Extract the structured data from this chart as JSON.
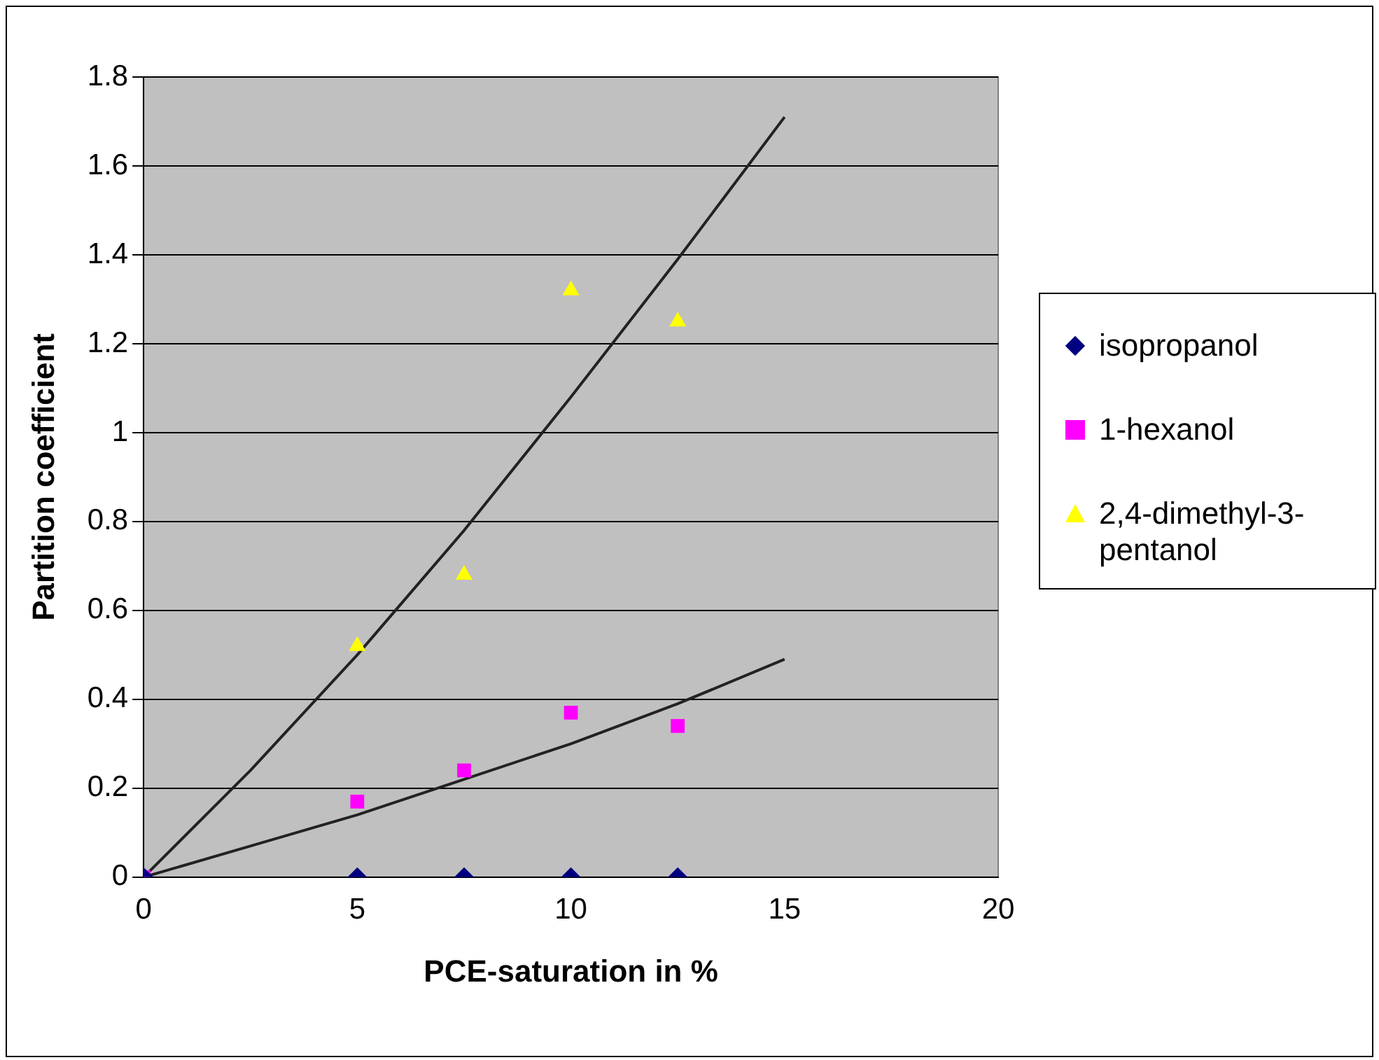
{
  "chart_data": {
    "type": "scatter",
    "xlabel": "PCE-saturation in %",
    "ylabel": "Partition coefficient",
    "xlim": [
      0,
      20
    ],
    "xticks": [
      0,
      5,
      10,
      15,
      20
    ],
    "ylim": [
      0,
      1.8
    ],
    "yticks": [
      0,
      0.2,
      0.4,
      0.6,
      0.8,
      1,
      1.2,
      1.4,
      1.6,
      1.8
    ],
    "grid": "y",
    "legend": "right",
    "series": [
      {
        "name": "isopropanol",
        "color": "#000080",
        "marker": "diamond",
        "x": [
          0,
          5,
          7.5,
          10,
          12.5
        ],
        "values": [
          0,
          0,
          0,
          0,
          0
        ]
      },
      {
        "name": "1-hexanol",
        "color": "#ff00ff",
        "marker": "square",
        "x": [
          0,
          5,
          7.5,
          10,
          12.5
        ],
        "values": [
          0,
          0.17,
          0.24,
          0.37,
          0.34
        ]
      },
      {
        "name": "2,4-dimethyl-3-pentanol",
        "color": "#ffff00",
        "marker": "triangle",
        "x": [
          0,
          5,
          7.5,
          10,
          12.5
        ],
        "values": [
          0,
          0.52,
          0.68,
          1.32,
          1.25
        ]
      },
      {
        "type": "line",
        "color": "#222222",
        "marker": "none",
        "x": [
          0,
          2.5,
          5,
          7.5,
          10,
          12.5,
          15
        ],
        "values": [
          0,
          0.24,
          0.5,
          0.78,
          1.08,
          1.39,
          1.71
        ]
      },
      {
        "type": "line",
        "color": "#222222",
        "marker": "none",
        "x": [
          0,
          2.5,
          5,
          7.5,
          10,
          12.5,
          15
        ],
        "values": [
          0,
          0.07,
          0.14,
          0.22,
          0.3,
          0.39,
          0.49
        ]
      }
    ]
  }
}
